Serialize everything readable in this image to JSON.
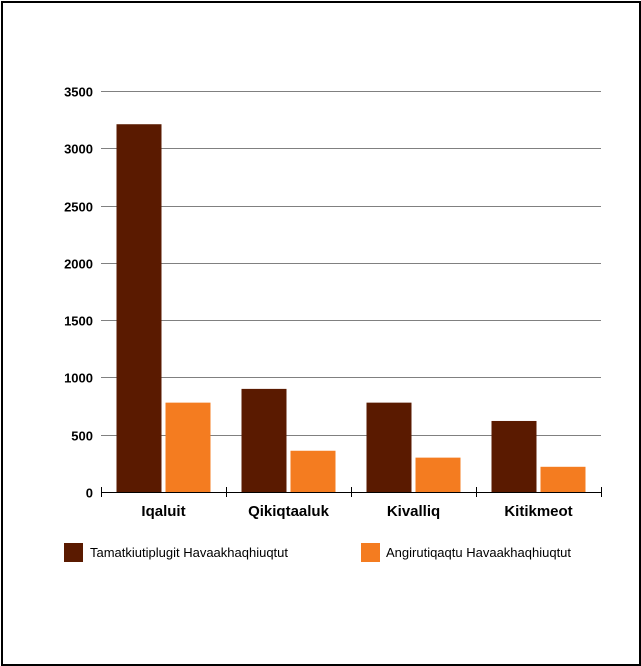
{
  "chart_data": {
    "type": "bar",
    "categories": [
      "Iqaluit",
      "Qikiqtaaluk",
      "Kivalliq",
      "Kitikmeot"
    ],
    "series": [
      {
        "name": "Tamatkiutiplugit Havaakhaqhiuqtut",
        "color": "#5a1a00",
        "values": [
          3210,
          900,
          780,
          620
        ]
      },
      {
        "name": "Angirutiqaqtu Havaakhaqhiuqtut",
        "color": "#f47c20",
        "values": [
          780,
          360,
          300,
          220
        ]
      }
    ],
    "ylim": [
      0,
      3500
    ],
    "yticks": [
      0,
      500,
      1000,
      1500,
      2000,
      2500,
      3000,
      3500
    ],
    "grid": true,
    "legend": "bottom"
  }
}
